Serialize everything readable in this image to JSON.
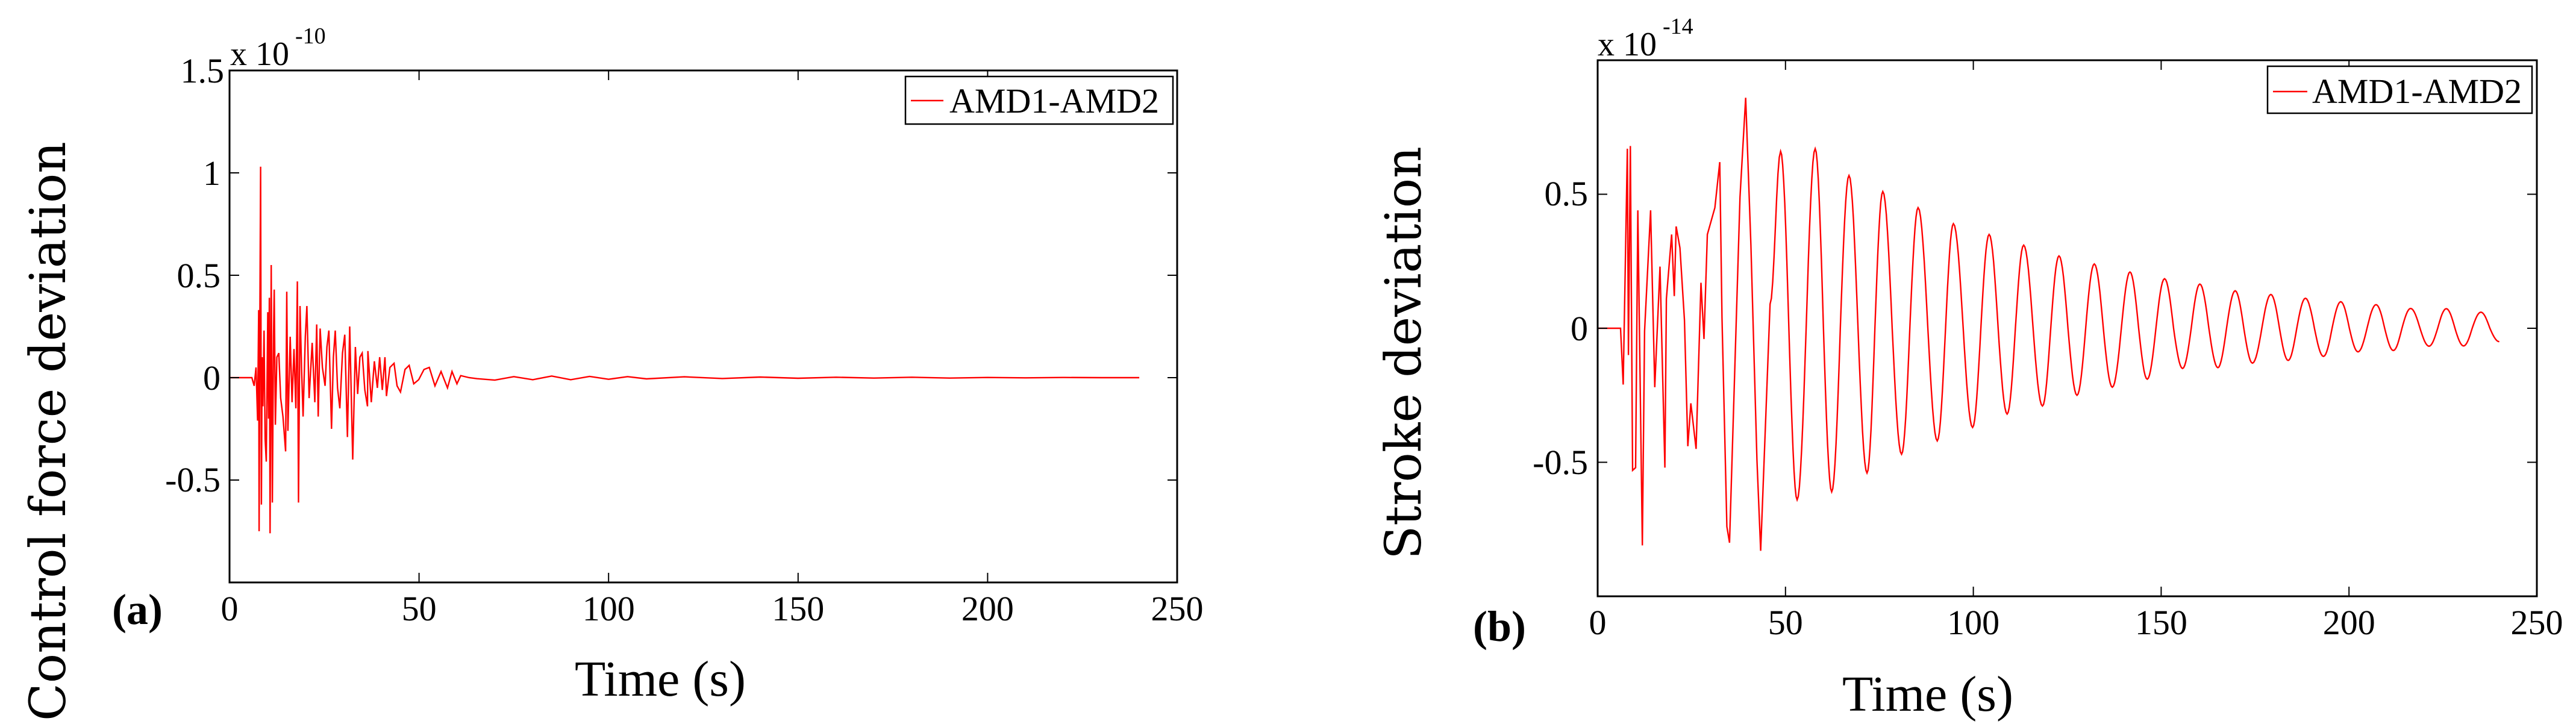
{
  "chart_data": [
    {
      "panel": "(a)",
      "type": "line",
      "title": "",
      "xlabel": "Time (s)",
      "ylabel": "Control force deviation",
      "y_exponent": "x 10",
      "y_exponent_power": "-10",
      "xlim": [
        0,
        250
      ],
      "ylim": [
        -1,
        1.5
      ],
      "xticks": [
        0,
        50,
        100,
        150,
        200,
        250
      ],
      "yticks": [
        -0.5,
        0,
        0.5,
        1,
        1.5
      ],
      "ytick_labels": [
        "-0.5",
        "0",
        "0.5",
        "1",
        "1.5"
      ],
      "grid": false,
      "legend_position": "upper right",
      "series": [
        {
          "name": "AMD1-AMD2",
          "color": "#ff0000",
          "x": [
            0,
            5.9,
            6.5,
            7.0,
            7.4,
            7.7,
            7.8,
            8.0,
            8.2,
            8.4,
            8.6,
            8.8,
            9.1,
            9.4,
            9.7,
            10.1,
            10.3,
            10.5,
            10.7,
            11.0,
            11.3,
            11.6,
            11.8,
            12.1,
            12.5,
            13.0,
            13.5,
            14.1,
            14.8,
            15.1,
            15.4,
            16.0,
            16.5,
            17.0,
            17.5,
            17.9,
            18.2,
            18.6,
            19.0,
            19.4,
            20.0,
            20.4,
            21.0,
            21.8,
            22.5,
            23.0,
            23.4,
            23.9,
            24.5,
            25.2,
            25.7,
            26.2,
            26.9,
            27.4,
            27.9,
            28.5,
            29.1,
            29.8,
            30.4,
            31.1,
            31.7,
            32.5,
            33.2,
            33.8,
            34.4,
            35.0,
            35.7,
            36.4,
            36.5,
            37.4,
            38.2,
            39.0,
            39.6,
            40.3,
            41.0,
            41.4,
            42.3,
            43.4,
            44.2,
            45.1,
            46.3,
            47.4,
            48.6,
            49.9,
            51.3,
            52.7,
            54.2,
            55.8,
            57.5,
            58.7,
            60.0,
            61.0,
            63.2,
            65.3,
            70,
            75,
            80,
            85,
            90,
            95,
            100,
            105,
            110,
            120,
            130,
            140,
            150,
            160,
            170,
            180,
            190,
            200,
            210,
            220,
            230,
            240
          ],
          "y": [
            0,
            0,
            -0.04,
            0.05,
            -0.21,
            0.33,
            -0.75,
            0.25,
            1.03,
            -0.62,
            0.1,
            -0.14,
            0.23,
            -0.3,
            -0.41,
            0.32,
            -0.2,
            0.39,
            -0.76,
            0.55,
            -0.61,
            0.2,
            0.43,
            -0.23,
            0.1,
            0.12,
            -0.1,
            -0.19,
            -0.36,
            0.42,
            -0.26,
            0.2,
            -0.12,
            0.14,
            -0.15,
            0.47,
            -0.61,
            0.35,
            0.05,
            -0.19,
            0.2,
            0.35,
            -0.1,
            0.17,
            -0.12,
            0.26,
            -0.19,
            0.24,
            0.05,
            -0.04,
            0.15,
            0.23,
            -0.25,
            0.1,
            0.23,
            -0.05,
            -0.15,
            0.12,
            0.21,
            -0.29,
            0.25,
            -0.4,
            0.15,
            -0.08,
            0.1,
            0.12,
            -0.06,
            -0.14,
            0.13,
            -0.12,
            0.08,
            -0.05,
            0.1,
            -0.06,
            0.1,
            -0.09,
            0.05,
            0.07,
            -0.04,
            -0.07,
            0.04,
            0.06,
            -0.03,
            -0.01,
            0.04,
            0.05,
            -0.04,
            0.03,
            -0.05,
            0.03,
            -0.03,
            0.01,
            0.0,
            -0.005,
            -0.012,
            0.005,
            -0.01,
            0.008,
            -0.01,
            0.006,
            -0.008,
            0.005,
            -0.006,
            0.004,
            -0.004,
            0.003,
            -0.003,
            0.002,
            -0.002,
            0.002,
            -0.002,
            0.001,
            -0.001,
            0.001,
            0.0,
            0.0
          ]
        }
      ]
    },
    {
      "panel": "(b)",
      "type": "line",
      "title": "",
      "xlabel": "Time (s)",
      "ylabel": "Stroke deviation",
      "y_exponent": "x 10",
      "y_exponent_power": "-14",
      "xlim": [
        0,
        250
      ],
      "ylim": [
        -1,
        1
      ],
      "xticks": [
        0,
        50,
        100,
        150,
        200,
        250
      ],
      "yticks": [
        -0.5,
        0,
        0.5
      ],
      "ytick_labels": [
        "-0.5",
        "0",
        "0.5"
      ],
      "grid": false,
      "legend_position": "upper right",
      "series": [
        {
          "name": "AMD1-AMD2",
          "color": "#ff0000",
          "x": [
            0,
            6.1,
            6.8,
            7.9,
            8.2,
            8.7,
            9.3,
            10.1,
            10.7,
            11.9,
            12.5,
            14.1,
            15.2,
            16.6,
            17.9,
            18.3,
            19.7,
            20.4,
            20.9,
            21.9,
            23.1,
            24.0,
            24.8,
            26.2,
            27.5,
            28.3,
            29.2,
            31.2,
            32.5,
            33.1,
            34.4,
            35.1,
            37.9,
            39.4,
            40.8,
            42.4,
            43.4,
            45.9,
            48.7,
            50.9,
            53.1,
            55.5,
            57.9,
            60.1,
            62.3,
            64.6,
            66.9,
            69.3,
            71.7,
            73.8,
            75.9,
            78.4,
            80.9,
            83.1,
            85.3,
            87.9,
            90.4,
            92.6,
            94.7,
            97.3,
            99.8,
            102.0,
            104.2,
            106.6,
            109.0,
            111.2,
            113.4,
            115.9,
            118.4,
            120.6,
            122.8,
            125.2,
            127.6,
            129.9,
            132.2,
            134.6,
            137.0,
            139.4,
            141.7,
            144.0,
            146.3,
            148.6,
            150.9,
            153.3,
            155.7,
            158.0,
            160.3,
            162.7,
            165.1,
            167.4,
            169.7,
            172.0,
            174.3,
            176.8,
            179.2,
            181.5,
            183.8,
            186.1,
            188.4,
            190.8,
            193.2,
            195.5,
            197.8,
            200.1,
            202.4,
            204.8,
            207.2,
            209.5,
            211.8,
            214.1,
            216.4,
            218.9,
            221.3,
            223.6,
            225.9,
            228.2,
            230.5,
            232.8,
            235.1,
            237.5,
            240.0
          ],
          "y": [
            0,
            0,
            -0.21,
            0.67,
            -0.1,
            0.68,
            -0.53,
            -0.52,
            0.44,
            -0.81,
            -0.01,
            0.44,
            -0.22,
            0.23,
            -0.52,
            0.11,
            0.35,
            0.12,
            0.38,
            0.3,
            0.03,
            -0.44,
            -0.28,
            -0.45,
            0.17,
            -0.04,
            0.35,
            0.45,
            0.62,
            0.04,
            -0.74,
            -0.8,
            0.49,
            0.86,
            0.31,
            -0.49,
            -0.83,
            0.09,
            0.66,
            0.0,
            -0.64,
            0.0,
            0.67,
            0.0,
            -0.61,
            0.0,
            0.57,
            0.0,
            -0.54,
            0.0,
            0.51,
            0.0,
            -0.47,
            0.0,
            0.45,
            0.0,
            -0.42,
            0.0,
            0.39,
            0.0,
            -0.37,
            0.0,
            0.35,
            0.0,
            -0.32,
            0.0,
            0.31,
            0.0,
            -0.29,
            0.0,
            0.27,
            0.0,
            -0.25,
            0.0,
            0.24,
            0.0,
            -0.22,
            0.0,
            0.21,
            0.0,
            -0.19,
            0.0,
            0.185,
            0.0,
            -0.15,
            0.0,
            0.165,
            0.0,
            -0.147,
            0.0,
            0.14,
            0.0,
            -0.13,
            0.0,
            0.126,
            0.0,
            -0.12,
            0.0,
            0.112,
            0.0,
            -0.105,
            0.0,
            0.099,
            0.0,
            -0.088,
            0.0,
            0.088,
            0.0,
            -0.083,
            0.0,
            0.074,
            0.0,
            -0.067,
            0.0,
            0.073,
            0.0,
            -0.066,
            0.0,
            0.06,
            0.0,
            -0.05
          ]
        }
      ]
    }
  ],
  "panels": {
    "a": {
      "tag": "(a)",
      "ylabel": "Control force deviation",
      "xlabel": "Time (s)",
      "exp_base": "x 10",
      "exp_power": "-10",
      "legend_label": "AMD1-AMD2",
      "xtick_labels": [
        "0",
        "50",
        "100",
        "150",
        "200",
        "250"
      ],
      "ytick_labels": [
        "-0.5",
        "0",
        "0.5",
        "1",
        "1.5"
      ]
    },
    "b": {
      "tag": "(b)",
      "ylabel": "Stroke deviation",
      "xlabel": "Time (s)",
      "exp_base": "x 10",
      "exp_power": "-14",
      "legend_label": "AMD1-AMD2",
      "xtick_labels": [
        "0",
        "50",
        "100",
        "150",
        "200",
        "250"
      ],
      "ytick_labels": [
        "-0.5",
        "0",
        "0.5"
      ]
    },
    "series_color": "#ff0000"
  }
}
